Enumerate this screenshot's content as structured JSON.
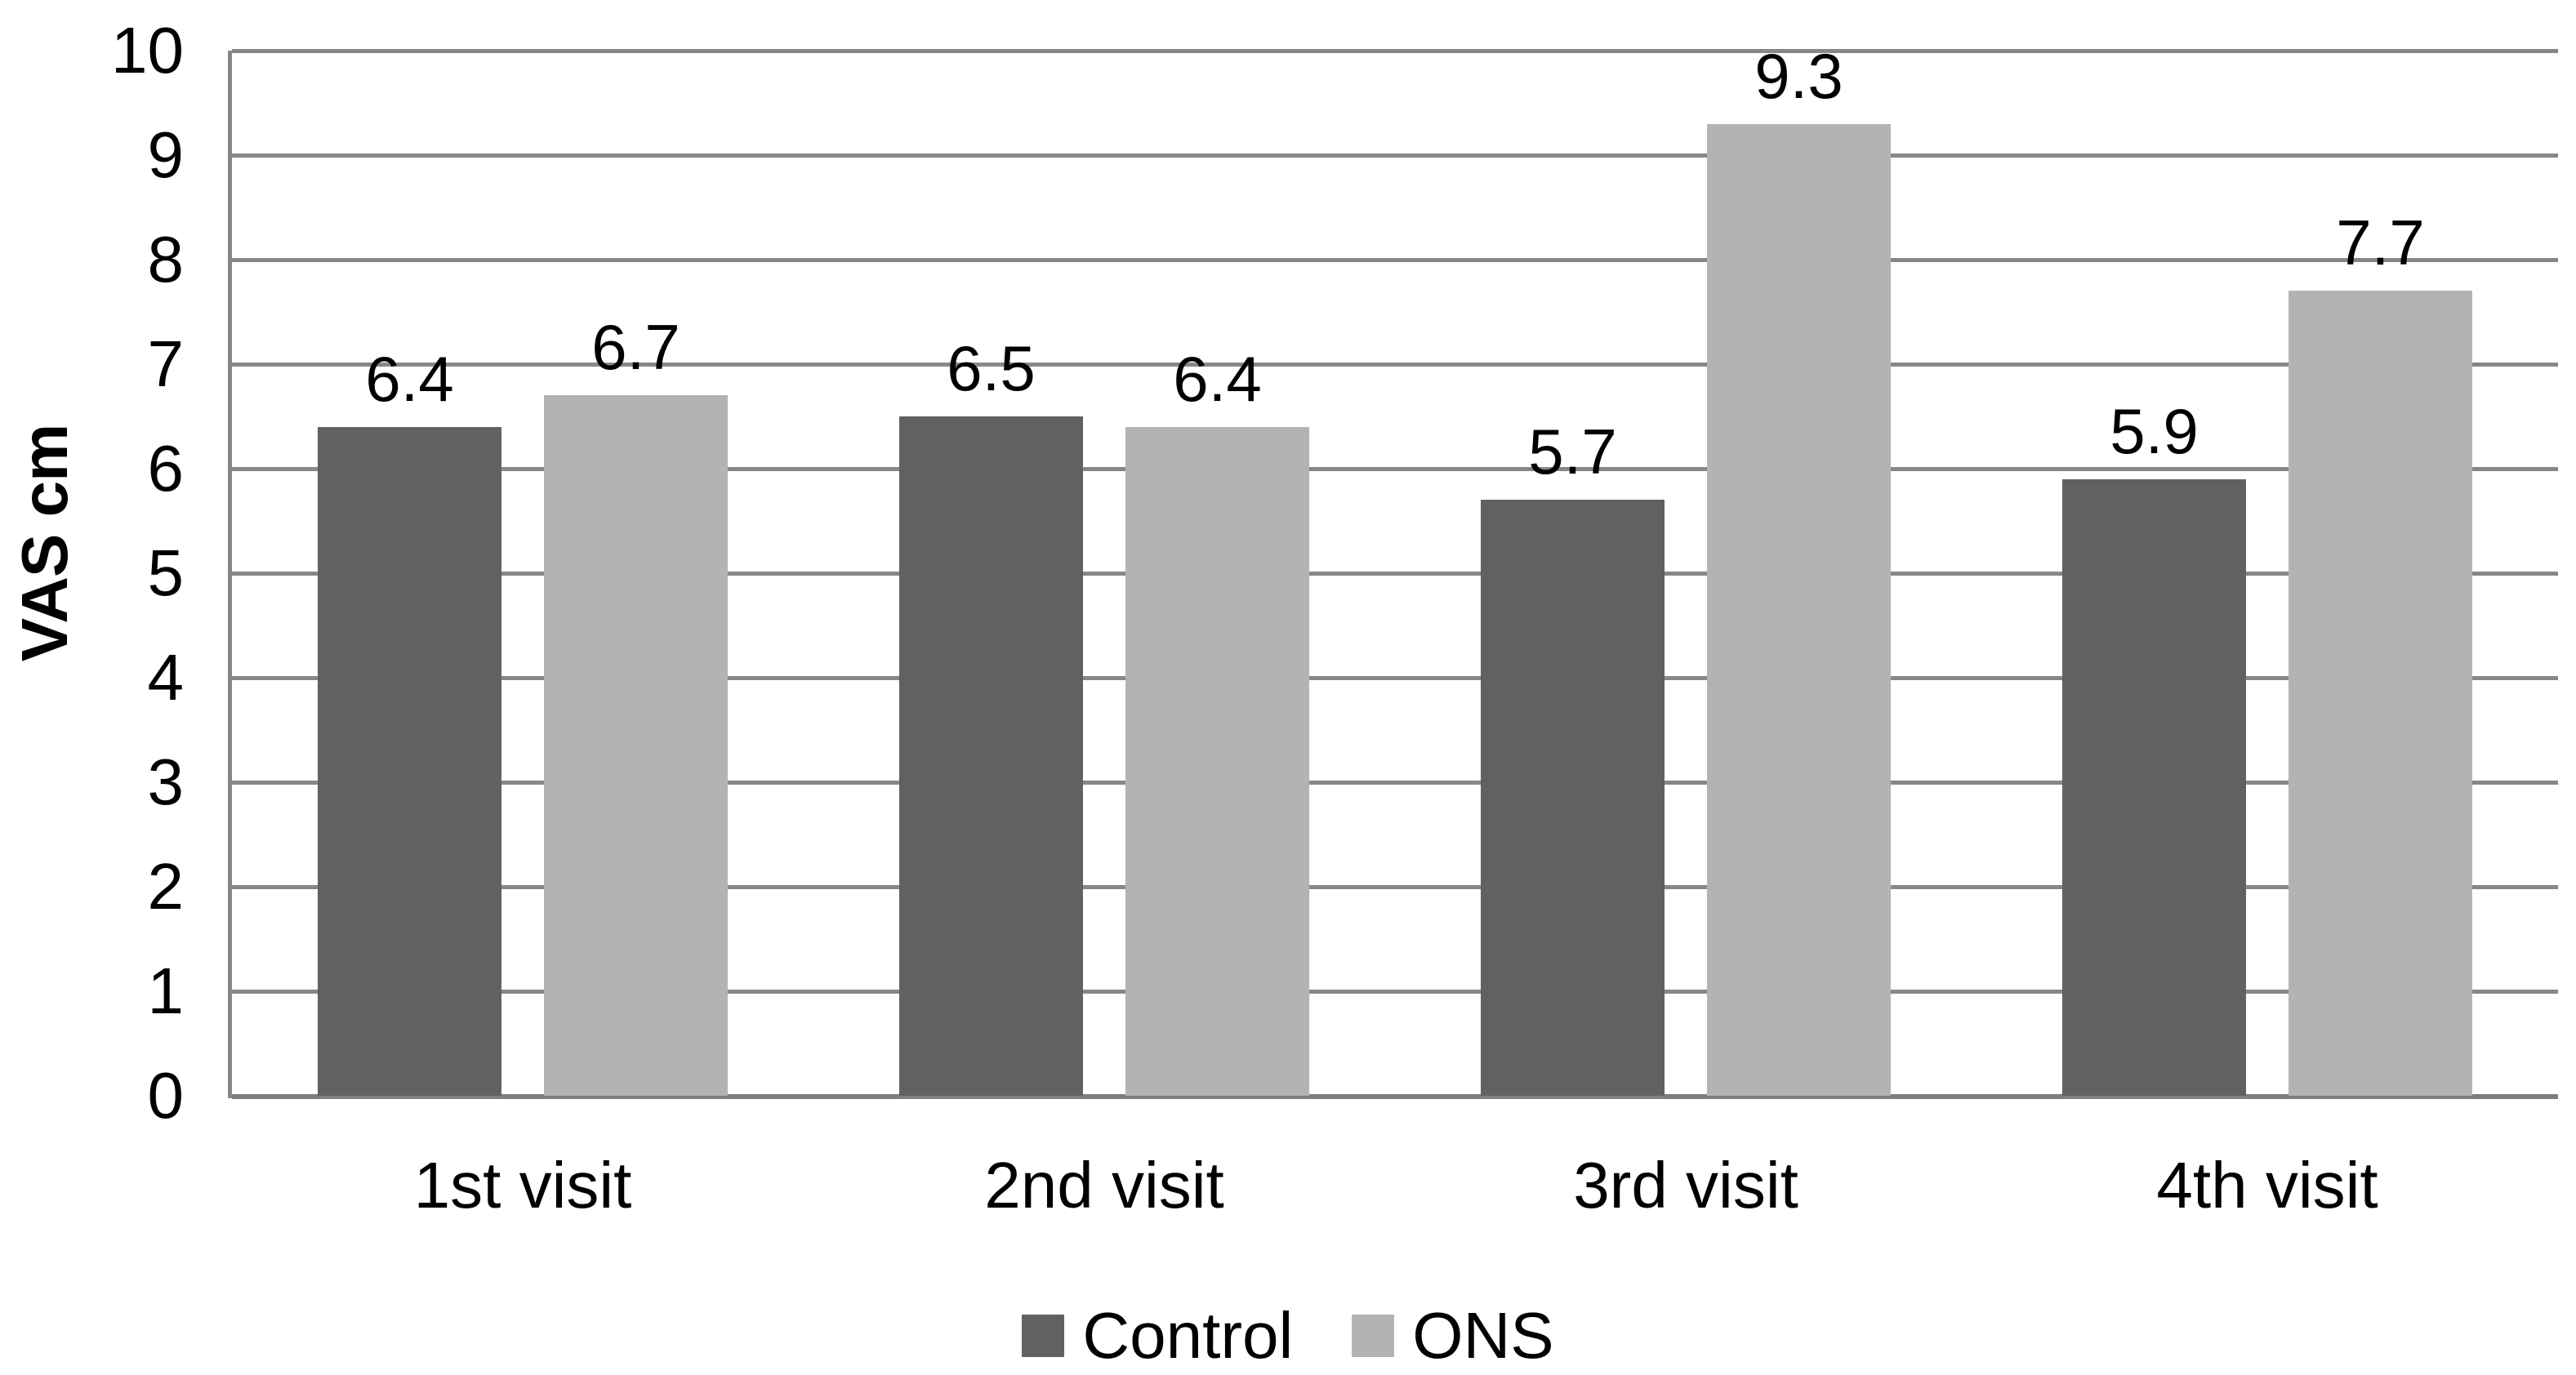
{
  "chart_data": {
    "type": "bar",
    "title": "",
    "ylabel": "VAS cm",
    "xlabel": "",
    "categories": [
      "1st visit",
      "2nd visit",
      "3rd visit",
      "4th visit"
    ],
    "series": [
      {
        "name": "Control",
        "color": "#616161",
        "values": [
          6.4,
          6.5,
          5.7,
          5.9
        ],
        "data_labels": [
          "6.4",
          "6.5",
          "5.7",
          "5.9"
        ]
      },
      {
        "name": "ONS",
        "color": "#b3b3b3",
        "values": [
          6.7,
          6.4,
          9.3,
          7.7
        ],
        "data_labels": [
          "6.7",
          "6.4",
          "9.3",
          "7.7"
        ]
      }
    ],
    "ylim": [
      0,
      10
    ],
    "yticks": [
      "0",
      "1",
      "2",
      "3",
      "4",
      "5",
      "6",
      "7",
      "8",
      "9",
      "10"
    ],
    "grid": "horizontal-major",
    "legend_position": "bottom-center"
  },
  "colors": {
    "background": "#ffffff",
    "gridline": "#878787",
    "axis": "#7f7f7f",
    "text": "#000000",
    "control_bar": "#616161",
    "ons_bar": "#b3b3b3"
  }
}
